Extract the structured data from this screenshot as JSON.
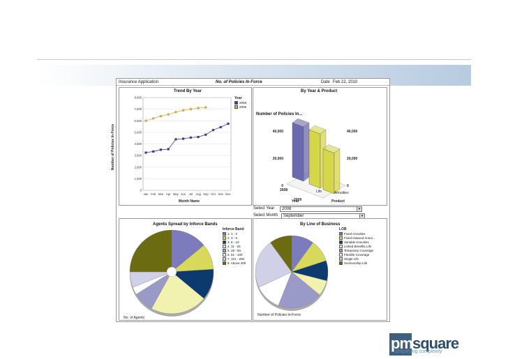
{
  "header": {
    "app_name": "Insurance Application",
    "report_title": "No. of Policies In-Force",
    "date_label": "Date",
    "date_value": "Feb 22, 2010"
  },
  "trend": {
    "title": "Trend By Year",
    "legend_title": "Year",
    "xlabel": "Month Name",
    "ylabel": "Number of Policies In-Force"
  },
  "product": {
    "title": "By Year & Product",
    "subtitle": "Number of Policies In...",
    "year_label": "Year",
    "product_label": "Product"
  },
  "selectors": {
    "year_label": "Select Year",
    "year_value": "2008",
    "month_label": "Select Month",
    "month_value": "September"
  },
  "agents": {
    "title": "Agents Spread by Inforce Bands",
    "legend_title": "Inforce Band",
    "footer": "No. of Agents"
  },
  "lob": {
    "title": "By Line of Business",
    "legend_title": "LOB",
    "footer": "Number of Policies In-Force"
  },
  "logo": {
    "name": "pmsquare",
    "tagline": "simplifying complexity"
  },
  "colors": {
    "series_2008": "#3b3b9c",
    "series_2009": "#d9a84a",
    "navy": "#0d3a6e",
    "olive": "#6b6b12",
    "lavender": "#7b7bbd",
    "pale_yellow": "#eef0a0"
  },
  "chart_data": [
    {
      "type": "line",
      "title": "Trend By Year",
      "xlabel": "Month Name",
      "ylabel": "Number of Policies In-Force",
      "categories": [
        "Jan",
        "Feb",
        "Mar",
        "Apr",
        "May",
        "Jun",
        "Jul",
        "Aug",
        "Sep",
        "Oct",
        "Nov",
        "Dec"
      ],
      "series": [
        {
          "name": "2008",
          "color": "#3b3b9c",
          "values": [
            3250,
            3350,
            3500,
            3550,
            4400,
            4450,
            4550,
            4600,
            4800,
            5200,
            5450,
            5750
          ]
        },
        {
          "name": "2009",
          "color": "#d9a84a",
          "values": [
            6000,
            6200,
            6400,
            6550,
            6750,
            6900,
            7000,
            7100,
            7150,
            null,
            null,
            null
          ]
        }
      ],
      "ylim": [
        0,
        8000
      ],
      "yticks": [
        "0",
        "1,000",
        "2,000",
        "3,000",
        "4,000",
        "5,000",
        "6,000",
        "7,000",
        "8,000"
      ],
      "legend": "top-right",
      "grid": true
    },
    {
      "type": "bar",
      "title": "By Year & Product",
      "subtitle": "Number of Policies In...",
      "categories": [
        "2008",
        "2009"
      ],
      "products": [
        "Life",
        "Annuities"
      ],
      "series": [
        {
          "name": "Life",
          "values": [
            40000,
            40000
          ]
        },
        {
          "name": "Annuities",
          "values": [
            30000,
            30000
          ]
        }
      ],
      "ylim": [
        0,
        40000
      ],
      "yticks": [
        "0",
        "20,000",
        "40,000"
      ],
      "xlabel": "Year",
      "zlabel": "Product"
    },
    {
      "type": "pie",
      "title": "Agents Spread by Inforce Bands",
      "legend_title": "Inforce Band",
      "categories": [
        "1. 1 - 2",
        "2. 3 - 5",
        "3. 6 - 10",
        "4. 11 - 25",
        "5. 26 - 50",
        "6. 51 - 100",
        "7. 101 - 200",
        "8. Above 200"
      ],
      "colors": [
        "#7b7bbd",
        "#d8d85a",
        "#0d3a6e",
        "#f2f2b0",
        "#9a9ac8",
        "#ffffff",
        "#d0d0e8",
        "#6b6b12"
      ],
      "values": [
        14,
        10,
        12,
        22,
        8,
        3,
        6,
        25
      ],
      "footer": "No. of Agents"
    },
    {
      "type": "pie",
      "title": "By Line of Business",
      "legend_title": "LOB",
      "categories": [
        "Fixed Annuities",
        "Fixed Indexed Annui...",
        "Variable Annuities",
        "Linked Benefits Life",
        "Temporary Coverage",
        "Flexible Coverage",
        "Single Life",
        "Survivorship Life"
      ],
      "colors": [
        "#7b7bbd",
        "#d8d85a",
        "#0d3a6e",
        "#f2f2b0",
        "#9a9ac8",
        "#ffffff",
        "#d0d0e8",
        "#6b6b12"
      ],
      "values": [
        10,
        10,
        9,
        7,
        20,
        12,
        22,
        10
      ],
      "footer": "Number of Policies In-Force"
    }
  ]
}
